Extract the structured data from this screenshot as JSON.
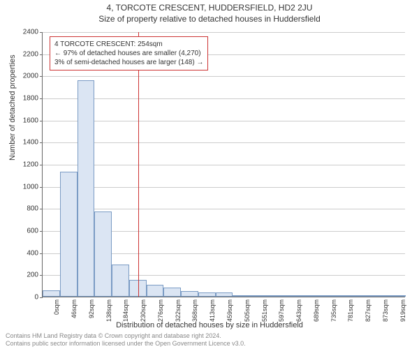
{
  "title": {
    "line1": "4, TORCOTE CRESCENT, HUDDERSFIELD, HD2 2JU",
    "line2": "Size of property relative to detached houses in Huddersfield"
  },
  "chart": {
    "type": "histogram",
    "ylabel": "Number of detached properties",
    "xlabel": "Distribution of detached houses by size in Huddersfield",
    "ylim": [
      0,
      2400
    ],
    "ytick_step": 200,
    "yticks": [
      0,
      200,
      400,
      600,
      800,
      1000,
      1200,
      1400,
      1600,
      1800,
      2000,
      2200,
      2400
    ],
    "xticks": [
      "0sqm",
      "46sqm",
      "92sqm",
      "138sqm",
      "184sqm",
      "230sqm",
      "276sqm",
      "322sqm",
      "368sqm",
      "413sqm",
      "459sqm",
      "505sqm",
      "551sqm",
      "597sqm",
      "643sqm",
      "689sqm",
      "735sqm",
      "781sqm",
      "827sqm",
      "873sqm",
      "919sqm"
    ],
    "bar_fill": "#dbe5f3",
    "bar_border": "#7a9bc4",
    "grid_color": "#cccccc",
    "background_color": "#ffffff",
    "axis_color": "#666666",
    "values": [
      60,
      1130,
      1960,
      770,
      290,
      150,
      110,
      80,
      50,
      40,
      35,
      15,
      15,
      5,
      5,
      2,
      2,
      2,
      2,
      2,
      2
    ],
    "reference_line": {
      "x_value": 254,
      "color": "#cc3333"
    },
    "annotation": {
      "line1": "4 TORCOTE CRESCENT: 254sqm",
      "line2": "← 97% of detached houses are smaller (4,270)",
      "line3": "3% of semi-detached houses are larger (148) →",
      "border_color": "#cc3333"
    },
    "title_fontsize": 12,
    "label_fontsize": 11,
    "tick_fontsize": 10
  },
  "footer": {
    "line1": "Contains HM Land Registry data © Crown copyright and database right 2024.",
    "line2": "Contains public sector information licensed under the Open Government Licence v3.0."
  }
}
